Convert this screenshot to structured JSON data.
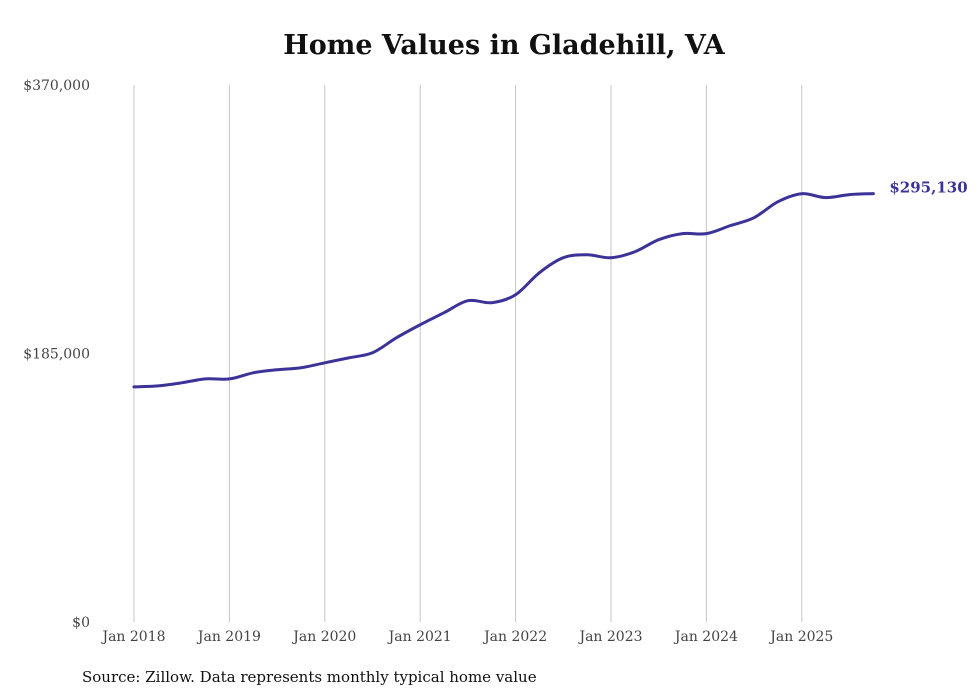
{
  "chart_data": {
    "type": "line",
    "title": "Home Values in Gladehill, VA",
    "xlabel": "",
    "ylabel": "",
    "ylim": [
      0,
      370000
    ],
    "yticks": [
      0,
      185000,
      370000
    ],
    "ytick_labels": [
      "$0",
      "$185,000",
      "$370,000"
    ],
    "xticks": [
      2018,
      2019,
      2020,
      2021,
      2022,
      2023,
      2024,
      2025
    ],
    "xtick_labels": [
      "Jan 2018",
      "Jan 2019",
      "Jan 2020",
      "Jan 2021",
      "Jan 2022",
      "Jan 2023",
      "Jan 2024",
      "Jan 2025"
    ],
    "grid": "vertical",
    "line_color": "#3b3397",
    "end_label": "$295,130",
    "series": [
      {
        "name": "Typical home value",
        "x": [
          2018.0,
          2018.25,
          2018.5,
          2018.75,
          2019.0,
          2019.25,
          2019.5,
          2019.75,
          2020.0,
          2020.25,
          2020.5,
          2020.75,
          2021.0,
          2021.25,
          2021.5,
          2021.75,
          2022.0,
          2022.25,
          2022.5,
          2022.75,
          2023.0,
          2023.25,
          2023.5,
          2023.75,
          2024.0,
          2024.25,
          2024.5,
          2024.75,
          2025.0,
          2025.25,
          2025.5,
          2025.75
        ],
        "values": [
          162000,
          162700,
          164800,
          167500,
          167500,
          171700,
          173800,
          175200,
          178600,
          182000,
          185500,
          195800,
          204800,
          213100,
          221400,
          220000,
          225500,
          240700,
          251000,
          253000,
          251000,
          255100,
          263400,
          267600,
          267600,
          273100,
          278600,
          289600,
          295100,
          292400,
          294500,
          295130
        ]
      }
    ]
  },
  "source": "Source: Zillow. Data represents monthly typical home value"
}
